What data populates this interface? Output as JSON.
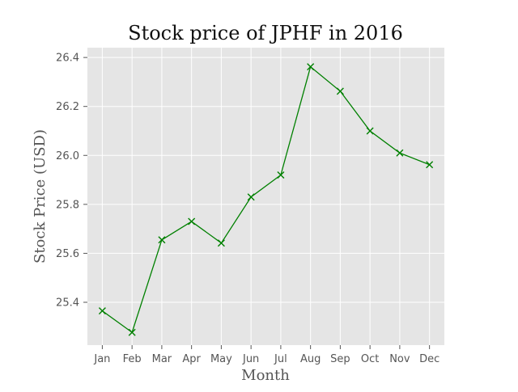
{
  "chart_data": {
    "type": "line",
    "title": "Stock price of JPHF in 2016",
    "xlabel": "Month",
    "ylabel": "Stock Price (USD)",
    "categories": [
      "Jan",
      "Feb",
      "Mar",
      "Apr",
      "May",
      "Jun",
      "Jul",
      "Aug",
      "Sep",
      "Oct",
      "Nov",
      "Dec"
    ],
    "series": [
      {
        "values": [
          25.365,
          25.277,
          25.655,
          25.73,
          25.642,
          25.83,
          25.92,
          26.362,
          26.262,
          26.1,
          26.01,
          25.962
        ]
      }
    ],
    "ylim": [
      25.225,
      26.44
    ],
    "yticks": [
      25.4,
      25.6,
      25.8,
      26.0,
      26.2,
      26.4
    ],
    "ytick_labels": [
      "25.4",
      "25.6",
      "25.8",
      "26.0",
      "26.2",
      "26.4"
    ],
    "grid": true,
    "marker": "x",
    "colors": {
      "line": "#008000",
      "plot_background": "#e5e5e5",
      "grid": "#ffffff",
      "text": "#555555",
      "title": "#111111"
    }
  }
}
